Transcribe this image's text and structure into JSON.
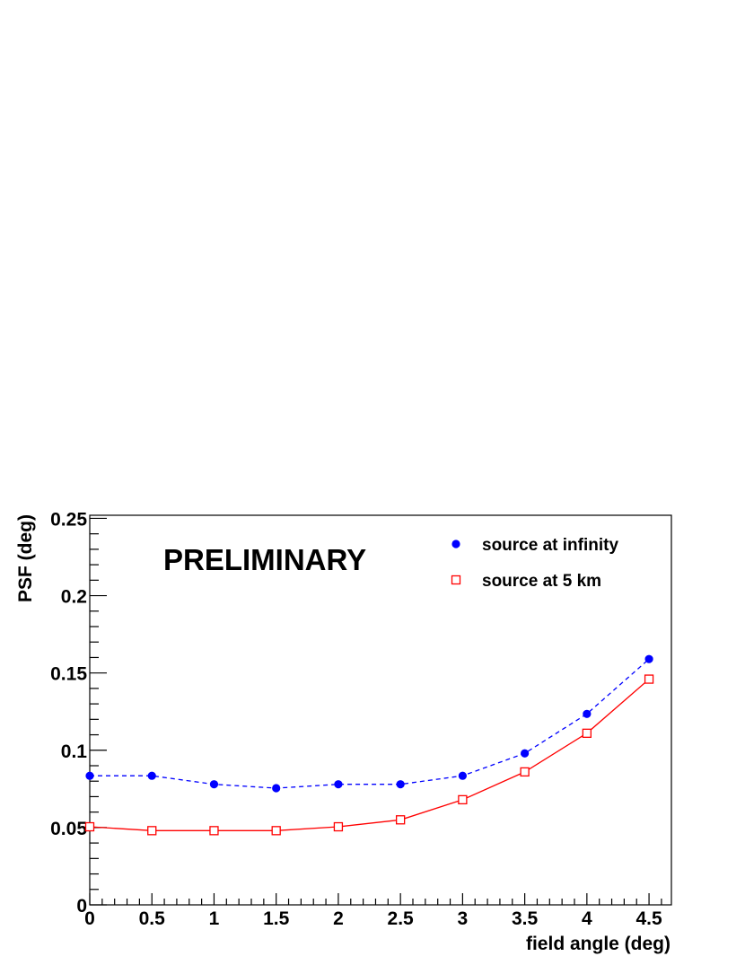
{
  "chart_data": {
    "type": "line",
    "xlabel": "field angle (deg)",
    "ylabel": "PSF (deg)",
    "annotation": "PRELIMINARY",
    "xlim": [
      0,
      4.68
    ],
    "ylim": [
      0,
      0.252
    ],
    "x_ticks": [
      0,
      0.5,
      1,
      1.5,
      2,
      2.5,
      3,
      3.5,
      4,
      4.5
    ],
    "x_tick_labels": [
      "0",
      "0.5",
      "1",
      "1.5",
      "2",
      "2.5",
      "3",
      "3.5",
      "4",
      "4.5"
    ],
    "y_ticks": [
      0,
      0.05,
      0.1,
      0.15,
      0.2,
      0.25
    ],
    "y_tick_labels": [
      "0",
      "0.05",
      "0.1",
      "0.15",
      "0.2",
      "0.25"
    ],
    "legend_position": "top-right",
    "grid": false,
    "x": [
      0,
      0.5,
      1,
      1.5,
      2,
      2.5,
      3,
      3.5,
      4,
      4.5
    ],
    "series": [
      {
        "name": "source at infinity",
        "values": [
          0.0835,
          0.0835,
          0.078,
          0.0755,
          0.078,
          0.078,
          0.0835,
          0.098,
          0.1235,
          0.159
        ],
        "color": "#0000ff",
        "marker": "filled-circle",
        "line": "dashed"
      },
      {
        "name": "source at 5 km",
        "values": [
          0.0505,
          0.048,
          0.048,
          0.048,
          0.0505,
          0.055,
          0.068,
          0.086,
          0.111,
          0.146
        ],
        "color": "#ff0000",
        "marker": "open-square",
        "line": "solid"
      }
    ]
  }
}
